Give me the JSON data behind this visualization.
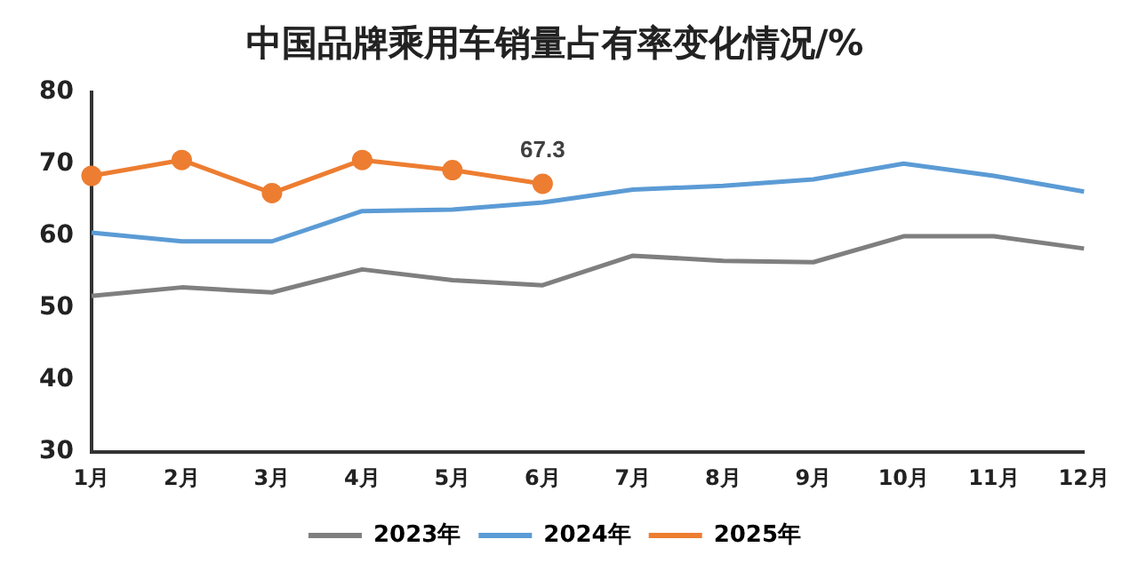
{
  "chart_data": {
    "type": "line",
    "title": "中国品牌乘用车销量占有率变化情况/%",
    "categories": [
      "1月",
      "2月",
      "3月",
      "4月",
      "5月",
      "6月",
      "7月",
      "8月",
      "9月",
      "10月",
      "11月",
      "12月"
    ],
    "series": [
      {
        "name": "2023年",
        "color": "#7f7f7f",
        "marker": "none",
        "values": [
          51.7,
          52.9,
          52.2,
          55.4,
          53.9,
          53.2,
          57.3,
          56.6,
          56.4,
          60,
          60,
          58.3
        ]
      },
      {
        "name": "2024年",
        "color": "#5b9bd5",
        "marker": "none",
        "values": [
          60.5,
          59.3,
          59.3,
          63.5,
          63.7,
          64.7,
          66.5,
          67,
          67.9,
          70.1,
          68.4,
          66.2
        ]
      },
      {
        "name": "2025年",
        "color": "#ed7d31",
        "marker": "circle",
        "values": [
          68.4,
          70.6,
          66,
          70.6,
          69.2,
          67.3,
          null,
          null,
          null,
          null,
          null,
          null
        ],
        "value_labels": [
          null,
          null,
          null,
          null,
          null,
          "67.3",
          null,
          null,
          null,
          null,
          null,
          null
        ]
      }
    ],
    "ylim": [
      30,
      80
    ],
    "yticks": [
      30,
      40,
      50,
      60,
      70,
      80
    ],
    "grid": false,
    "legend": "bottom",
    "line_style": "solid"
  }
}
